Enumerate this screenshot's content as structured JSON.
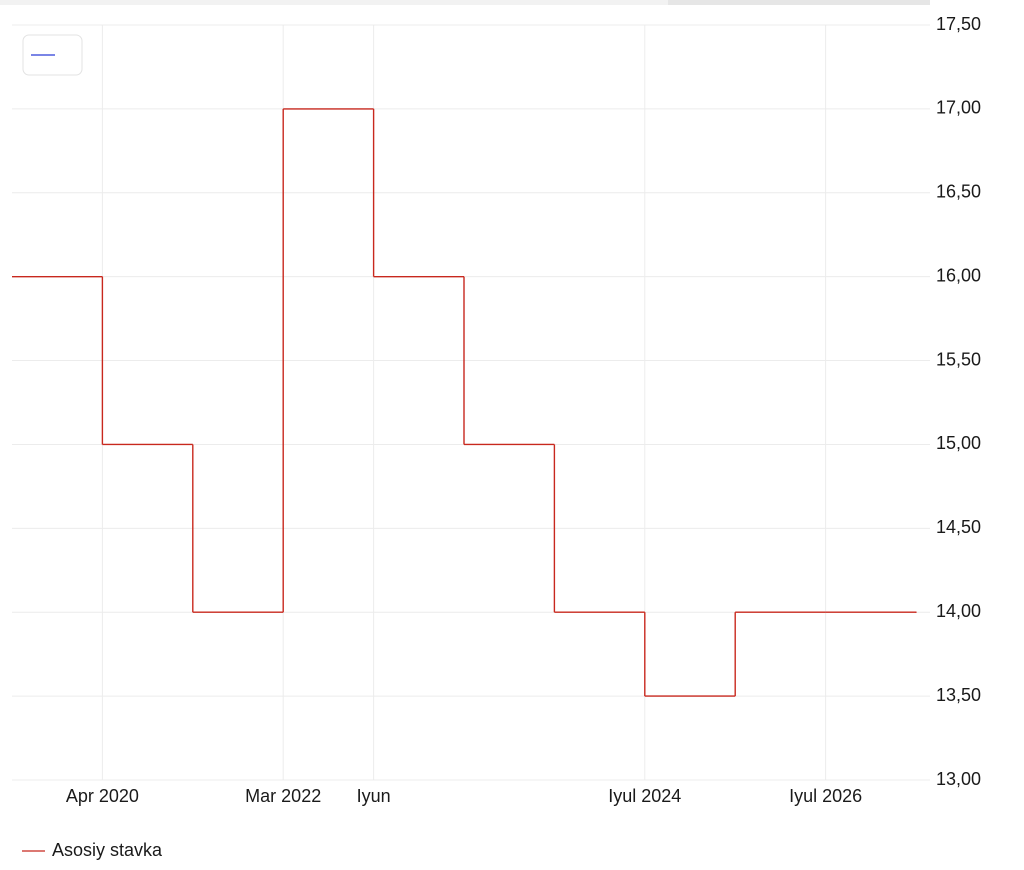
{
  "chart_data": {
    "type": "step",
    "categories": [
      null,
      "Apr 2020",
      null,
      "Mar 2022",
      "Iyun",
      null,
      null,
      "Iyul 2024",
      null,
      "Iyul 2026",
      null
    ],
    "series": [
      {
        "name": "Asosiy stavka",
        "color": "#c8281e",
        "values": [
          16,
          15,
          14,
          17,
          16,
          15,
          14,
          13.5,
          14,
          14,
          14
        ]
      }
    ],
    "ylim": [
      13,
      17.5
    ],
    "yticks": [
      {
        "value": 13,
        "label": "13,00"
      },
      {
        "value": 13.5,
        "label": "13,50"
      },
      {
        "value": 14,
        "label": "14,00"
      },
      {
        "value": 14.5,
        "label": "14,50"
      },
      {
        "value": 15,
        "label": "15,00"
      },
      {
        "value": 15.5,
        "label": "15,50"
      },
      {
        "value": 16,
        "label": "16,00"
      },
      {
        "value": 16.5,
        "label": "16,50"
      },
      {
        "value": 17,
        "label": "17,00"
      },
      {
        "value": 17.5,
        "label": "17,50"
      }
    ],
    "grid": true
  }
}
